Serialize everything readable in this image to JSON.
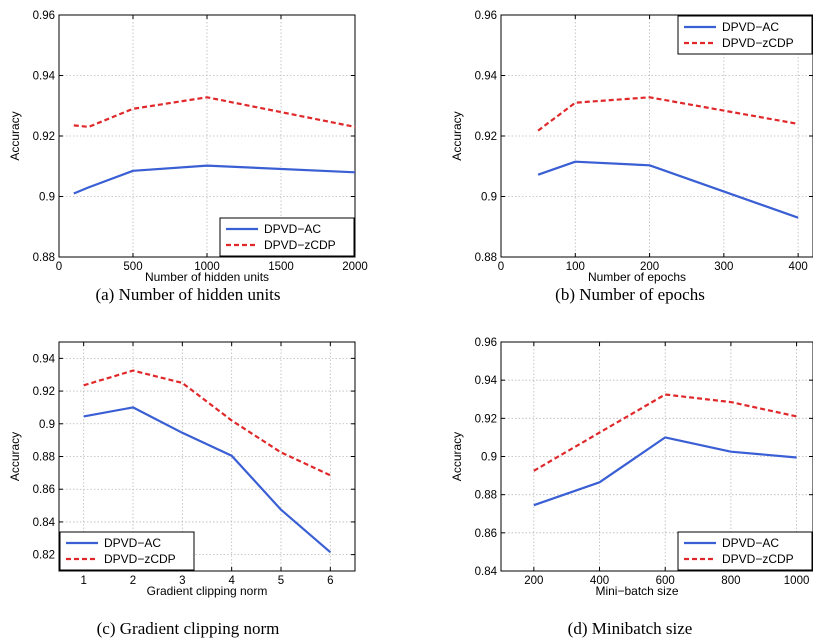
{
  "colors": {
    "ac": "#3a5fd4",
    "zcdp": "#e0282a",
    "grid": "#b9b9b9",
    "axis": "#000000"
  },
  "chart_data": [
    {
      "type": "line",
      "caption": "(a)  Number of hidden units",
      "xlabel": "Number of hidden units",
      "ylabel": "Accuracy",
      "xlim": [
        0,
        2000
      ],
      "ylim": [
        0.88,
        0.96
      ],
      "xticks": [
        0,
        500,
        1000,
        1500,
        2000
      ],
      "xtick_labels": [
        "0",
        "500",
        "1000",
        "1500",
        "2000"
      ],
      "yticks": [
        0.88,
        0.9,
        0.92,
        0.94,
        0.96
      ],
      "ytick_labels": [
        "0.88",
        "0.9",
        "0.92",
        "0.94",
        "0.96"
      ],
      "legend_position": "bottom-right",
      "series": [
        {
          "name": "DPVD−AC",
          "style": "solid",
          "x": [
            100,
            200,
            500,
            1000,
            2000
          ],
          "y": [
            0.901,
            0.903,
            0.9085,
            0.9102,
            0.908
          ]
        },
        {
          "name": "DPVD−zCDP",
          "style": "dashed",
          "x": [
            100,
            200,
            500,
            1000,
            2000
          ],
          "y": [
            0.9235,
            0.923,
            0.929,
            0.9328,
            0.923
          ]
        }
      ]
    },
    {
      "type": "line",
      "caption": "(b)  Number of epochs",
      "xlabel": "Number of epochs",
      "ylabel": "Accuracy",
      "xlim": [
        0,
        420
      ],
      "ylim": [
        0.88,
        0.96
      ],
      "xticks": [
        0,
        100,
        200,
        300,
        400
      ],
      "xtick_labels": [
        "0",
        "100",
        "200",
        "300",
        "400"
      ],
      "yticks": [
        0.88,
        0.9,
        0.92,
        0.94,
        0.96
      ],
      "ytick_labels": [
        "0.88",
        "0.9",
        "0.92",
        "0.94",
        "0.96"
      ],
      "legend_position": "top-right",
      "series": [
        {
          "name": "DPVD−AC",
          "style": "solid",
          "x": [
            50,
            100,
            200,
            400
          ],
          "y": [
            0.9072,
            0.9115,
            0.9103,
            0.893
          ]
        },
        {
          "name": "DPVD−zCDP",
          "style": "dashed",
          "x": [
            50,
            100,
            200,
            400
          ],
          "y": [
            0.9218,
            0.931,
            0.9328,
            0.924
          ]
        }
      ]
    },
    {
      "type": "line",
      "caption": "(c)  Gradient clipping norm",
      "xlabel": "Gradient clipping norm",
      "ylabel": "Accuracy",
      "xlim": [
        0.5,
        6.5
      ],
      "ylim": [
        0.81,
        0.95
      ],
      "xticks": [
        1,
        2,
        3,
        4,
        5,
        6
      ],
      "xtick_labels": [
        "1",
        "2",
        "3",
        "4",
        "5",
        "6"
      ],
      "yticks": [
        0.82,
        0.84,
        0.86,
        0.88,
        0.9,
        0.92,
        0.94
      ],
      "ytick_labels": [
        "0.82",
        "0.84",
        "0.86",
        "0.88",
        "0.9",
        "0.92",
        "0.94"
      ],
      "legend_position": "bottom-left",
      "series": [
        {
          "name": "DPVD−AC",
          "style": "solid",
          "x": [
            1,
            2,
            3,
            4,
            5,
            6
          ],
          "y": [
            0.9045,
            0.91,
            0.8945,
            0.8805,
            0.8475,
            0.8215
          ]
        },
        {
          "name": "DPVD−zCDP",
          "style": "dashed",
          "x": [
            1,
            2,
            3,
            4,
            5,
            6
          ],
          "y": [
            0.9235,
            0.9325,
            0.925,
            0.902,
            0.8825,
            0.8685
          ]
        }
      ]
    },
    {
      "type": "line",
      "caption": "(d)  Minibatch size",
      "xlabel": "Mini−batch size",
      "ylabel": "Accuracy",
      "xlim": [
        100,
        1050
      ],
      "ylim": [
        0.84,
        0.96
      ],
      "xticks": [
        200,
        400,
        600,
        800,
        1000
      ],
      "xtick_labels": [
        "200",
        "400",
        "600",
        "800",
        "1000"
      ],
      "yticks": [
        0.84,
        0.86,
        0.88,
        0.9,
        0.92,
        0.94,
        0.96
      ],
      "ytick_labels": [
        "0.84",
        "0.86",
        "0.88",
        "0.9",
        "0.92",
        "0.94",
        "0.96"
      ],
      "legend_position": "bottom-right",
      "series": [
        {
          "name": "DPVD−AC",
          "style": "solid",
          "x": [
            200,
            400,
            600,
            800,
            1000
          ],
          "y": [
            0.8745,
            0.8865,
            0.91,
            0.9025,
            0.8995
          ]
        },
        {
          "name": "DPVD−zCDP",
          "style": "dashed",
          "x": [
            200,
            400,
            600,
            800,
            1000
          ],
          "y": [
            0.8925,
            0.9125,
            0.9325,
            0.9285,
            0.921
          ]
        }
      ]
    }
  ]
}
